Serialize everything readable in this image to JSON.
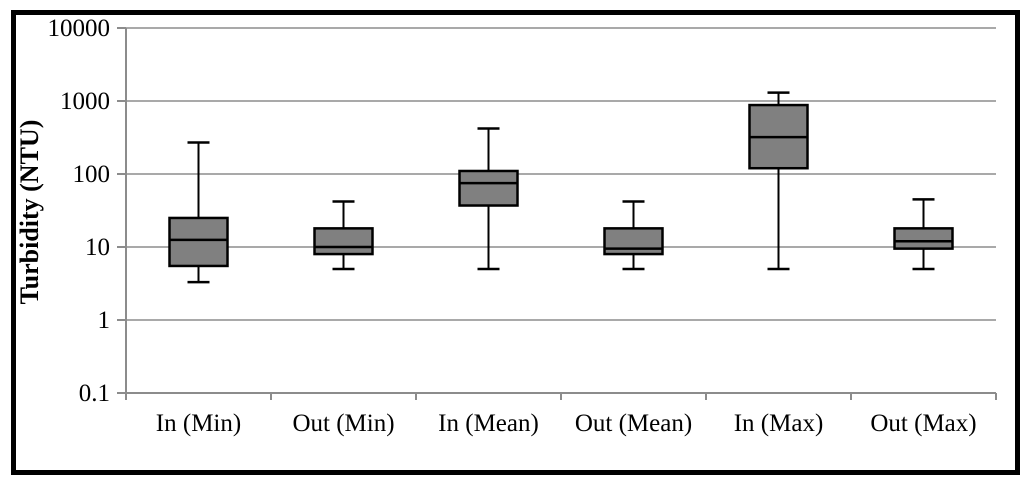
{
  "chart_data": {
    "type": "boxplot",
    "title": "",
    "ylabel": "Turbidity (NTU)",
    "xlabel": "",
    "y_scale": "log",
    "ylim": [
      0.1,
      10000
    ],
    "y_tick_labels": [
      "0.1",
      "1",
      "10",
      "100",
      "1000",
      "10000"
    ],
    "y_ticks": [
      0.1,
      1,
      10,
      100,
      1000,
      10000
    ],
    "grid": "horizontal-gridlines-on",
    "legend": "none",
    "categories": [
      "In (Min)",
      "Out (Min)",
      "In (Mean)",
      "Out (Mean)",
      "In (Max)",
      "Out (Max)"
    ],
    "series": [
      {
        "name": "In (Min)",
        "whisker_low": 3.3,
        "q1": 5.5,
        "median": 12.5,
        "q3": 25,
        "whisker_high": 270
      },
      {
        "name": "Out (Min)",
        "whisker_low": 5,
        "q1": 8,
        "median": 10,
        "q3": 18,
        "whisker_high": 42
      },
      {
        "name": "In (Mean)",
        "whisker_low": 5,
        "q1": 37,
        "median": 75,
        "q3": 110,
        "whisker_high": 420
      },
      {
        "name": "Out (Mean)",
        "whisker_low": 5,
        "q1": 8,
        "median": 9.5,
        "q3": 18,
        "whisker_high": 42
      },
      {
        "name": "In (Max)",
        "whisker_low": 5,
        "q1": 120,
        "median": 320,
        "q3": 880,
        "whisker_high": 1300
      },
      {
        "name": "Out (Max)",
        "whisker_low": 5,
        "q1": 9.5,
        "median": 12,
        "q3": 18,
        "whisker_high": 45
      }
    ],
    "colors": {
      "box_fill": "#808080",
      "box_border": "#000000",
      "median": "#000000",
      "whisker": "#000000",
      "gridline": "#a9a9a9",
      "axis": "#8c8c8c",
      "text": "#000000",
      "frame": "#000000",
      "background": "#ffffff"
    }
  }
}
